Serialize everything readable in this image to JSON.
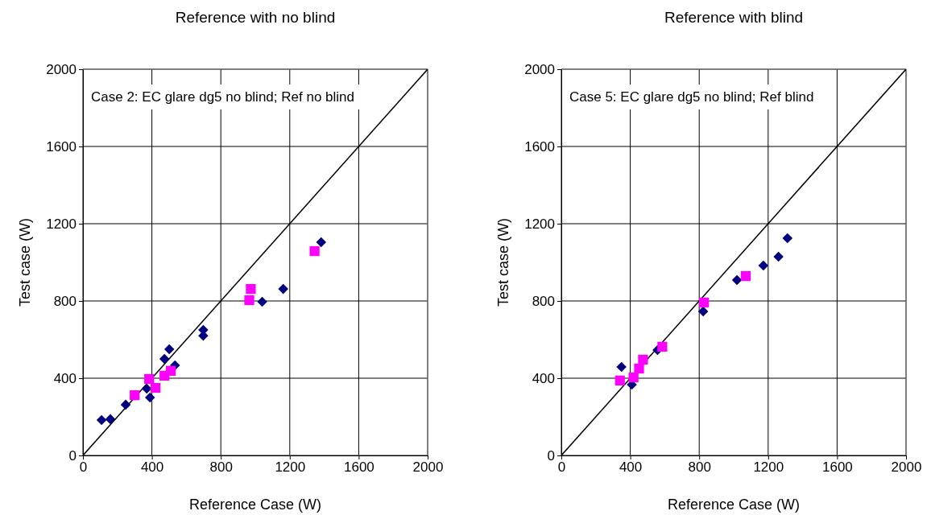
{
  "chart_data": [
    {
      "type": "scatter",
      "title": "Reference with no blind",
      "xlabel": "Reference Case (W)",
      "ylabel": "Test case (W)",
      "annotations": [
        "Case 2: EC glare dg5 no blind; Ref no blind"
      ],
      "xlim": [
        0,
        2000
      ],
      "ylim": [
        0,
        2000
      ],
      "xticks": [
        0,
        400,
        800,
        1200,
        1600,
        2000
      ],
      "yticks": [
        0,
        400,
        800,
        1200,
        1600,
        2000
      ],
      "grid": true,
      "series": [
        {
          "type": "line",
          "color": "#000000",
          "x": [
            0,
            2000
          ],
          "values": [
            0,
            2000
          ]
        },
        {
          "color": "#000080",
          "marker": "diamond",
          "x": [
            108,
            159,
            248,
            389,
            370,
            473,
            501,
            534,
            698,
            698,
            1040,
            1162,
            1382
          ],
          "values": [
            183,
            188,
            263,
            300,
            346,
            500,
            550,
            467,
            650,
            620,
            796,
            862,
            1104
          ]
        },
        {
          "color": "#ff00ff",
          "marker": "square",
          "x": [
            300,
            384,
            421,
            473,
            510,
            965,
            974,
            1344
          ],
          "values": [
            312,
            396,
            350,
            413,
            438,
            804,
            862,
            1058
          ]
        }
      ]
    },
    {
      "type": "scatter",
      "title": "Reference with blind",
      "xlabel": "Reference Case (W)",
      "ylabel": "Test case (W)",
      "annotations": [
        "Case 5: EC glare dg5 no blind; Ref blind"
      ],
      "xlim": [
        0,
        2000
      ],
      "ylim": [
        0,
        2000
      ],
      "xticks": [
        0,
        400,
        800,
        1200,
        1600,
        2000
      ],
      "yticks": [
        0,
        400,
        800,
        1200,
        1600,
        2000
      ],
      "grid": true,
      "series": [
        {
          "type": "line",
          "color": "#000000",
          "x": [
            0,
            2000
          ],
          "values": [
            0,
            2000
          ]
        },
        {
          "color": "#000080",
          "marker": "diamond",
          "x": [
            349,
            409,
            558,
            823,
            1019,
            1172,
            1260,
            1312
          ],
          "values": [
            458,
            367,
            546,
            746,
            908,
            983,
            1029,
            1125
          ]
        },
        {
          "color": "#ff00ff",
          "marker": "square",
          "x": [
            340,
            419,
            451,
            474,
            586,
            828,
            1070
          ],
          "values": [
            388,
            404,
            450,
            496,
            563,
            792,
            929
          ]
        }
      ]
    }
  ]
}
